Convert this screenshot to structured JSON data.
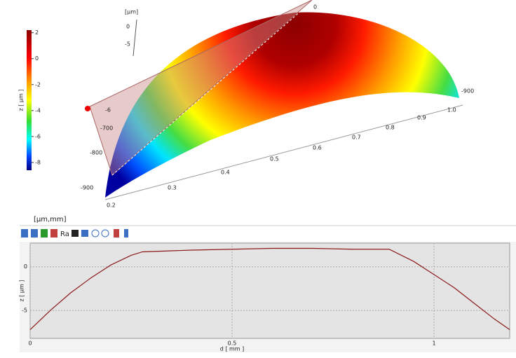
{
  "colorbar": {
    "label": "z [ µm ]",
    "ticks": [
      2,
      0,
      -2,
      -4,
      -6,
      -8
    ],
    "zlim": [
      -8.6,
      2.2
    ]
  },
  "view3d": {
    "z_axis_label": "[µm]",
    "z_ticks": [
      "0",
      "-5"
    ],
    "left_ticks": [
      "-6",
      "-700",
      "-800",
      "-900"
    ],
    "right_ticks": [
      "0",
      "-900"
    ],
    "x_ticks": [
      "0.2",
      "0.3",
      "0.4",
      "0.5",
      "0.6",
      "0.7",
      "0.8",
      "0.9",
      "1.0"
    ]
  },
  "toolbar": {
    "units": "[µm,mm]",
    "ra_button": "Ra"
  },
  "profile": {
    "x_label": "d [ mm ]",
    "y_label": "z [ µm ]",
    "color": "#8b1a1a",
    "grid": true,
    "xlim": [
      0,
      1.1875
    ],
    "ylim": [
      -8.2,
      2.7
    ],
    "xticks": [
      0,
      0.5,
      1
    ],
    "yticks": [
      0,
      -5
    ],
    "x": [
      0,
      0.05,
      0.1,
      0.15,
      0.2,
      0.25,
      0.278,
      0.4,
      0.5,
      0.6,
      0.7,
      0.8,
      0.889,
      0.95,
      1.0,
      1.05,
      1.1,
      1.15,
      1.1875
    ],
    "values": [
      -7.2,
      -5.0,
      -3.0,
      -1.3,
      0.2,
      1.3,
      1.7,
      1.9,
      2.0,
      2.1,
      2.1,
      2.0,
      2.0,
      0.6,
      -0.9,
      -2.4,
      -4.2,
      -6.0,
      -7.2
    ]
  }
}
